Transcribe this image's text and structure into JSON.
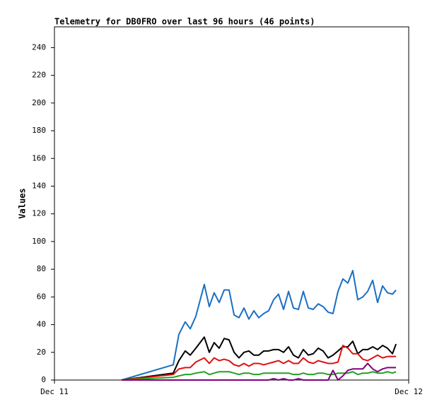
{
  "chart_data": {
    "type": "line",
    "title": "Telemetry for DB0FRO over last 96 hours (46 points)",
    "y_label": "Values",
    "x": [
      4.55,
      8.05,
      8.43,
      8.86,
      9.2,
      9.58,
      10.15,
      10.49,
      10.82,
      11.16,
      11.5,
      11.83,
      12.17,
      12.5,
      12.84,
      13.17,
      13.51,
      13.84,
      14.18,
      14.51,
      14.85,
      15.18,
      15.52,
      15.86,
      16.19,
      16.53,
      16.86,
      17.2,
      17.53,
      17.87,
      18.2,
      18.54,
      18.87,
      19.21,
      19.54,
      19.88,
      20.21,
      20.55,
      20.89,
      21.22,
      21.56,
      21.89,
      22.23,
      22.56,
      22.9,
      23.14
    ],
    "xlim": [
      0,
      24
    ],
    "xticks": [
      {
        "value": 0,
        "label": "Dec 11"
      },
      {
        "value": 24,
        "label": "Dec 12"
      }
    ],
    "ylim": [
      0,
      255
    ],
    "yticks": [
      0,
      20,
      40,
      60,
      80,
      100,
      120,
      140,
      160,
      180,
      200,
      220,
      240
    ],
    "grid": false,
    "series": [
      {
        "color": "#1a6fc4",
        "values": [
          0,
          11,
          33,
          42,
          37,
          46,
          69,
          53,
          63,
          56,
          65,
          65,
          47,
          45,
          52,
          44,
          50,
          45,
          48,
          50,
          58,
          62,
          51,
          64,
          52,
          51,
          64,
          52,
          51,
          55,
          53,
          49,
          48,
          64,
          73,
          70,
          79,
          58,
          60,
          64,
          72,
          56,
          68,
          63,
          62,
          65
        ]
      },
      {
        "color": "#000000",
        "values": [
          0,
          5,
          14,
          21,
          18,
          23,
          31,
          20,
          27,
          23,
          30,
          29,
          20,
          16,
          20,
          21,
          18,
          18,
          21,
          21,
          22,
          22,
          20,
          24,
          18,
          16,
          22,
          18,
          19,
          23,
          21,
          16,
          18,
          21,
          24,
          24,
          28,
          19,
          22,
          22,
          24,
          22,
          25,
          23,
          19,
          26
        ]
      },
      {
        "color": "#e01010",
        "values": [
          0,
          4,
          8,
          9,
          9,
          13,
          16,
          12,
          16,
          14,
          15,
          14,
          11,
          10,
          12,
          10,
          12,
          12,
          11,
          12,
          13,
          14,
          12,
          14,
          12,
          12,
          16,
          13,
          12,
          14,
          13,
          12,
          12,
          13,
          25,
          23,
          19,
          19,
          15,
          14,
          16,
          18,
          16,
          17,
          17,
          17
        ]
      },
      {
        "color": "#22a022",
        "values": [
          0,
          2,
          3,
          4,
          4,
          5,
          6,
          4,
          5,
          6,
          6,
          6,
          5,
          4,
          5,
          5,
          4,
          4,
          5,
          5,
          5,
          5,
          5,
          5,
          4,
          4,
          5,
          4,
          4,
          5,
          5,
          4,
          4,
          5,
          5,
          5,
          6,
          4,
          5,
          5,
          6,
          5,
          5,
          6,
          5,
          6
        ]
      },
      {
        "color": "#800080",
        "values": [
          0,
          0,
          0,
          0,
          0,
          0,
          0,
          0,
          0,
          0,
          0,
          0,
          0,
          0,
          0,
          0,
          0,
          0,
          0,
          0,
          1,
          0,
          1,
          0,
          0,
          1,
          0,
          0,
          0,
          0,
          0,
          0,
          7,
          0,
          3,
          7,
          8,
          8,
          8,
          12,
          8,
          6,
          8,
          9,
          9,
          9
        ]
      }
    ]
  }
}
